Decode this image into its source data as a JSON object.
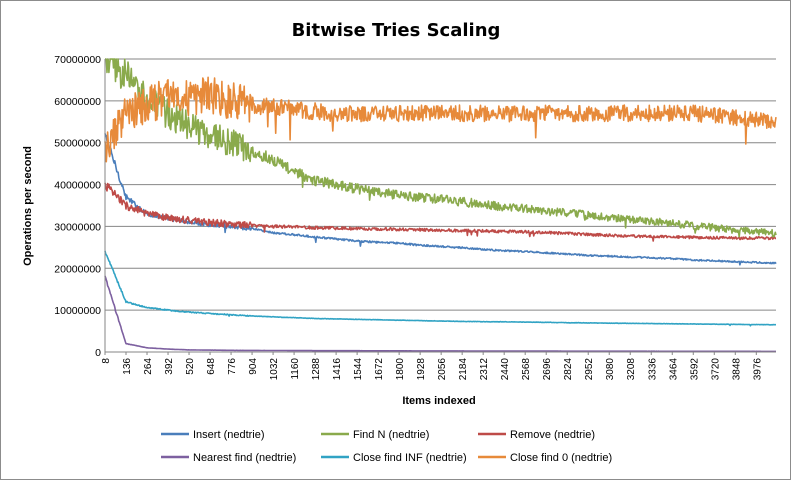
{
  "chart_data": {
    "type": "line",
    "title": "Bitwise Tries Scaling",
    "xlabel": "Items indexed",
    "ylabel": "Operations per second",
    "ylim": [
      0,
      70000000
    ],
    "y_ticks": [
      "0",
      "10000000",
      "20000000",
      "30000000",
      "40000000",
      "50000000",
      "60000000",
      "70000000"
    ],
    "x_tick_labels": [
      "8",
      "136",
      "264",
      "392",
      "520",
      "648",
      "776",
      "904",
      "1032",
      "1160",
      "1288",
      "1416",
      "1544",
      "1672",
      "1800",
      "1928",
      "2056",
      "2184",
      "2312",
      "2440",
      "2568",
      "2696",
      "2824",
      "2952",
      "3080",
      "3208",
      "3336",
      "3464",
      "3592",
      "3720",
      "3848",
      "3976"
    ],
    "x": [
      8,
      136,
      264,
      392,
      520,
      648,
      776,
      904,
      1032,
      1160,
      1288,
      1416,
      1544,
      1672,
      1800,
      1928,
      2056,
      2184,
      2312,
      2440,
      2568,
      2696,
      2824,
      2952,
      3080,
      3208,
      3336,
      3464,
      3592,
      3720,
      3848,
      3976,
      4096
    ],
    "legend_position": "bottom",
    "grid": true,
    "series": [
      {
        "name": "Insert (nedtrie)",
        "color": "#4a7ebb",
        "values": [
          52000000,
          37000000,
          33000000,
          32000000,
          31000000,
          30500000,
          30000000,
          29500000,
          28500000,
          28000000,
          27500000,
          27000000,
          26500000,
          26200000,
          26000000,
          25500000,
          25200000,
          24900000,
          24500000,
          24200000,
          24000000,
          23700000,
          23400000,
          23100000,
          22900000,
          22700000,
          22500000,
          22300000,
          22000000,
          21800000,
          21600000,
          21400000,
          21200000
        ]
      },
      {
        "name": "Find N (nedtrie)",
        "color": "#8aaa4c",
        "values": [
          70000000,
          66000000,
          60000000,
          57000000,
          54000000,
          52000000,
          50000000,
          48000000,
          46000000,
          43000000,
          41000000,
          40000000,
          39000000,
          38200000,
          37500000,
          37000000,
          36500000,
          35900000,
          35200000,
          34700000,
          34200000,
          33700000,
          33200000,
          32700000,
          32200000,
          31700000,
          31200000,
          30700000,
          30200000,
          29700000,
          29200000,
          28700000,
          28300000
        ]
      },
      {
        "name": "Remove (nedtrie)",
        "color": "#be4b48",
        "values": [
          40000000,
          35000000,
          33000000,
          32000000,
          31500000,
          31000000,
          30500000,
          30200000,
          30000000,
          29900000,
          29700000,
          29600000,
          29500000,
          29400000,
          29300000,
          29200000,
          29100000,
          29000000,
          28900000,
          28800000,
          28700000,
          28500000,
          28300000,
          28100000,
          27900000,
          27700000,
          27600000,
          27500000,
          27400000,
          27300000,
          27200000,
          27200000,
          27200000
        ]
      },
      {
        "name": "Nearest find (nedtrie)",
        "color": "#7d60a0",
        "values": [
          18000000,
          2000000,
          1000000,
          700000,
          500000,
          450000,
          400000,
          380000,
          360000,
          340000,
          320000,
          310000,
          300000,
          290000,
          280000,
          270000,
          260000,
          250000,
          240000,
          230000,
          220000,
          210000,
          200000,
          195000,
          190000,
          185000,
          180000,
          175000,
          170000,
          165000,
          160000,
          155000,
          150000
        ]
      },
      {
        "name": "Close find INF (nedtrie)",
        "color": "#31a3c4",
        "values": [
          24000000,
          12000000,
          10600000,
          10000000,
          9500000,
          9200000,
          8900000,
          8600000,
          8400000,
          8200000,
          8000000,
          7900000,
          7800000,
          7700000,
          7600000,
          7500000,
          7400000,
          7300000,
          7250000,
          7200000,
          7150000,
          7100000,
          7000000,
          6950000,
          6900000,
          6850000,
          6800000,
          6750000,
          6700000,
          6650000,
          6600000,
          6550000,
          6500000
        ]
      },
      {
        "name": "Close find 0 (nedtrie)",
        "color": "#e78a3a",
        "values": [
          48000000,
          57000000,
          59000000,
          61000000,
          61000000,
          61000000,
          60000000,
          59000000,
          58500000,
          58000000,
          57500000,
          57000000,
          57000000,
          57000000,
          57000000,
          57000000,
          57000000,
          57000000,
          57000000,
          57000000,
          57000000,
          57000000,
          57000000,
          57000000,
          57000000,
          57000000,
          57000000,
          57000000,
          57000000,
          56500000,
          56000000,
          55500000,
          55000000
        ]
      }
    ]
  }
}
